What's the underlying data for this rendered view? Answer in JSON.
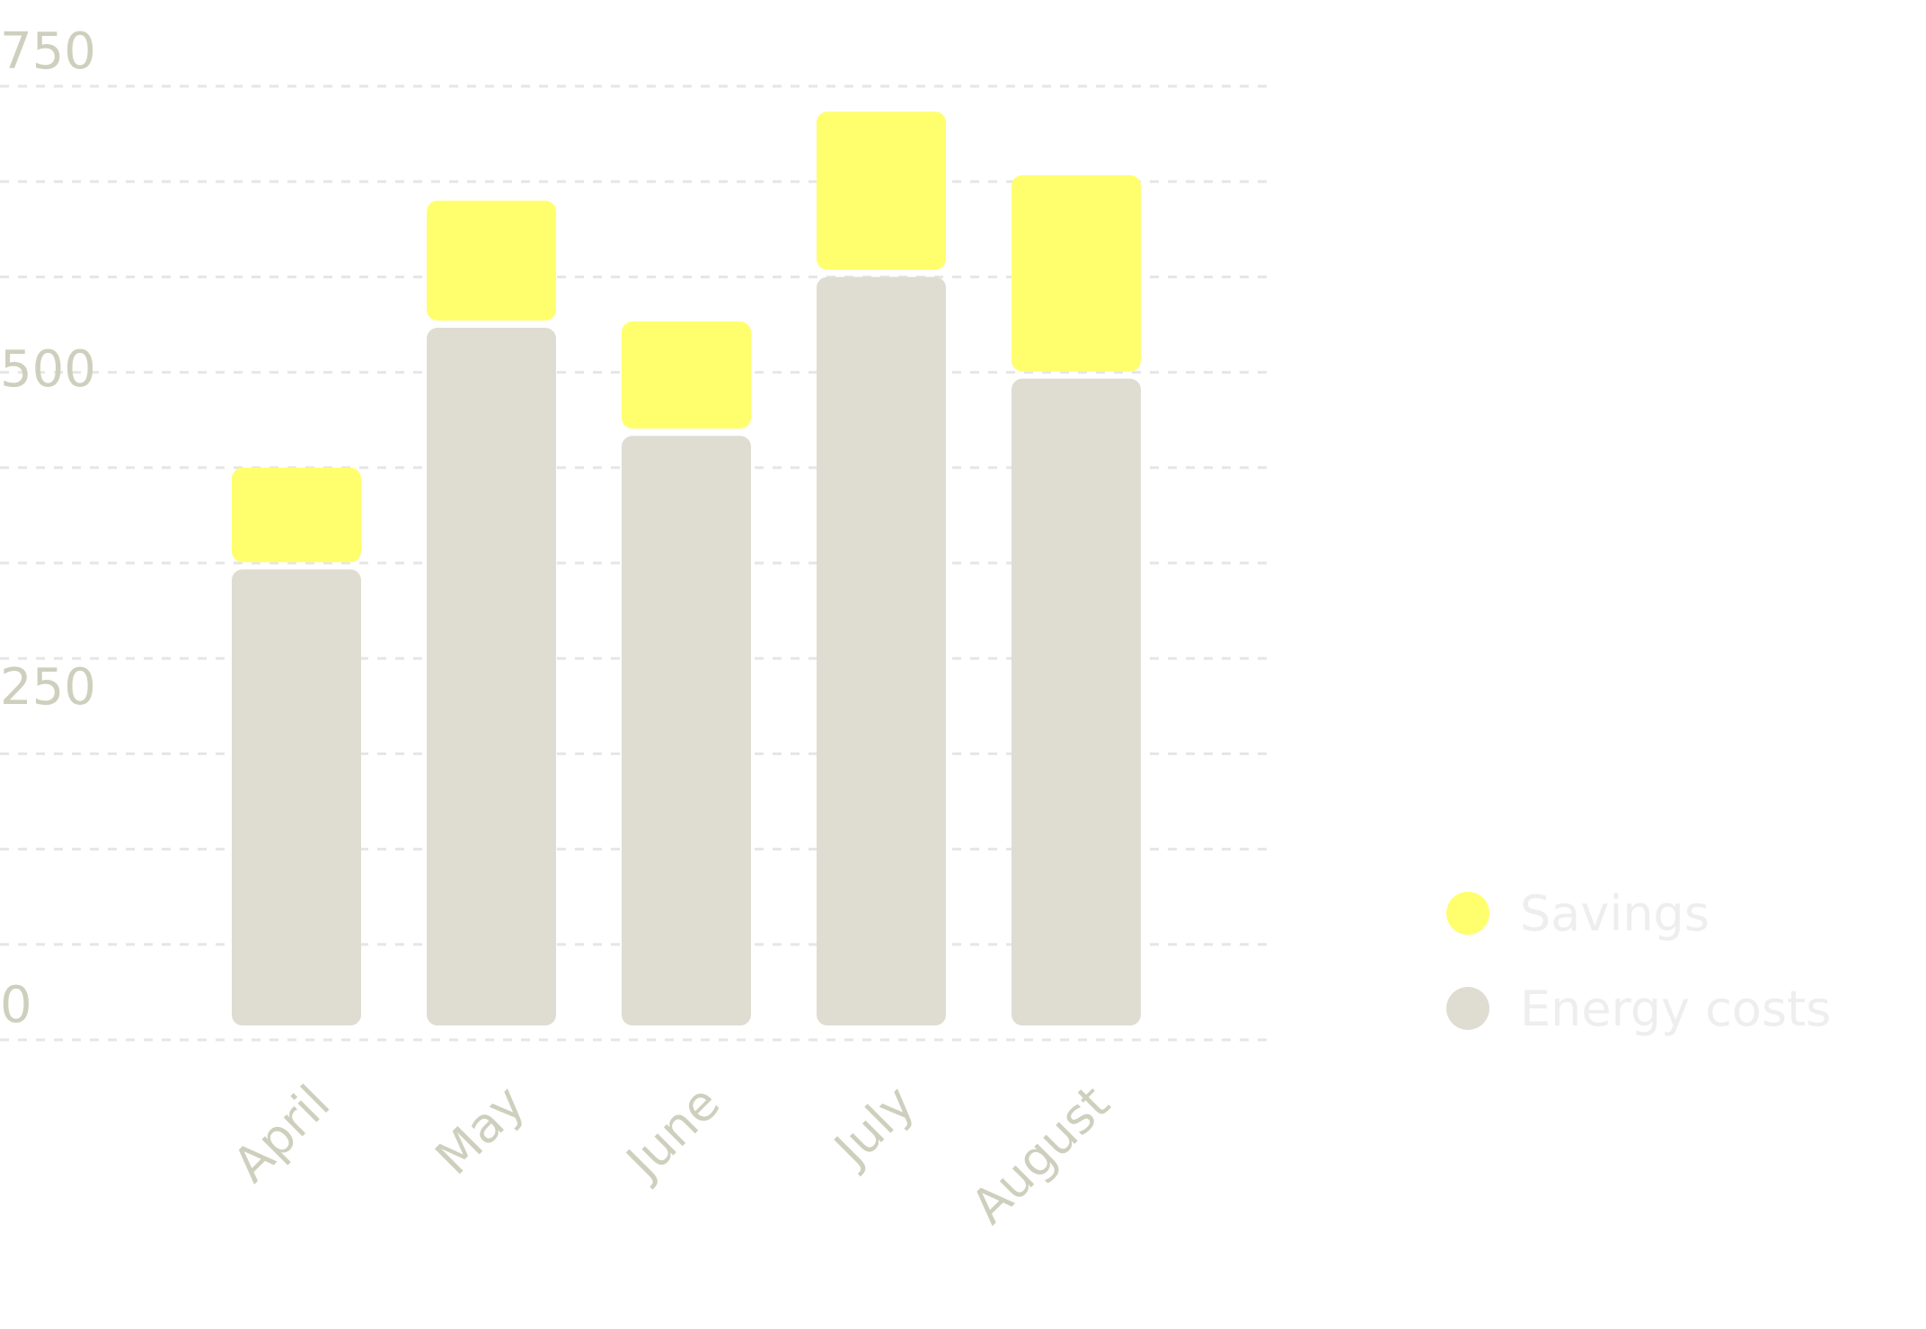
{
  "chart_data": {
    "type": "bar",
    "stacked": true,
    "categories": [
      "April",
      "May",
      "June",
      "July",
      "August"
    ],
    "series": [
      {
        "name": "Energy costs",
        "values": [
          370,
          560,
          475,
          600,
          520
        ],
        "color": "#dfddd2"
      },
      {
        "name": "Savings",
        "values": [
          80,
          100,
          90,
          130,
          160
        ],
        "color": "#ffff6e"
      }
    ],
    "y_ticks": [
      "0",
      "250",
      "500",
      "750"
    ],
    "ylim": [
      0,
      750
    ],
    "grid": true,
    "legend_position": "right"
  },
  "colors": {
    "axis_text": "#cfcfbe",
    "legend_text": "#eeeeee",
    "grid": "#e6e6e6"
  }
}
